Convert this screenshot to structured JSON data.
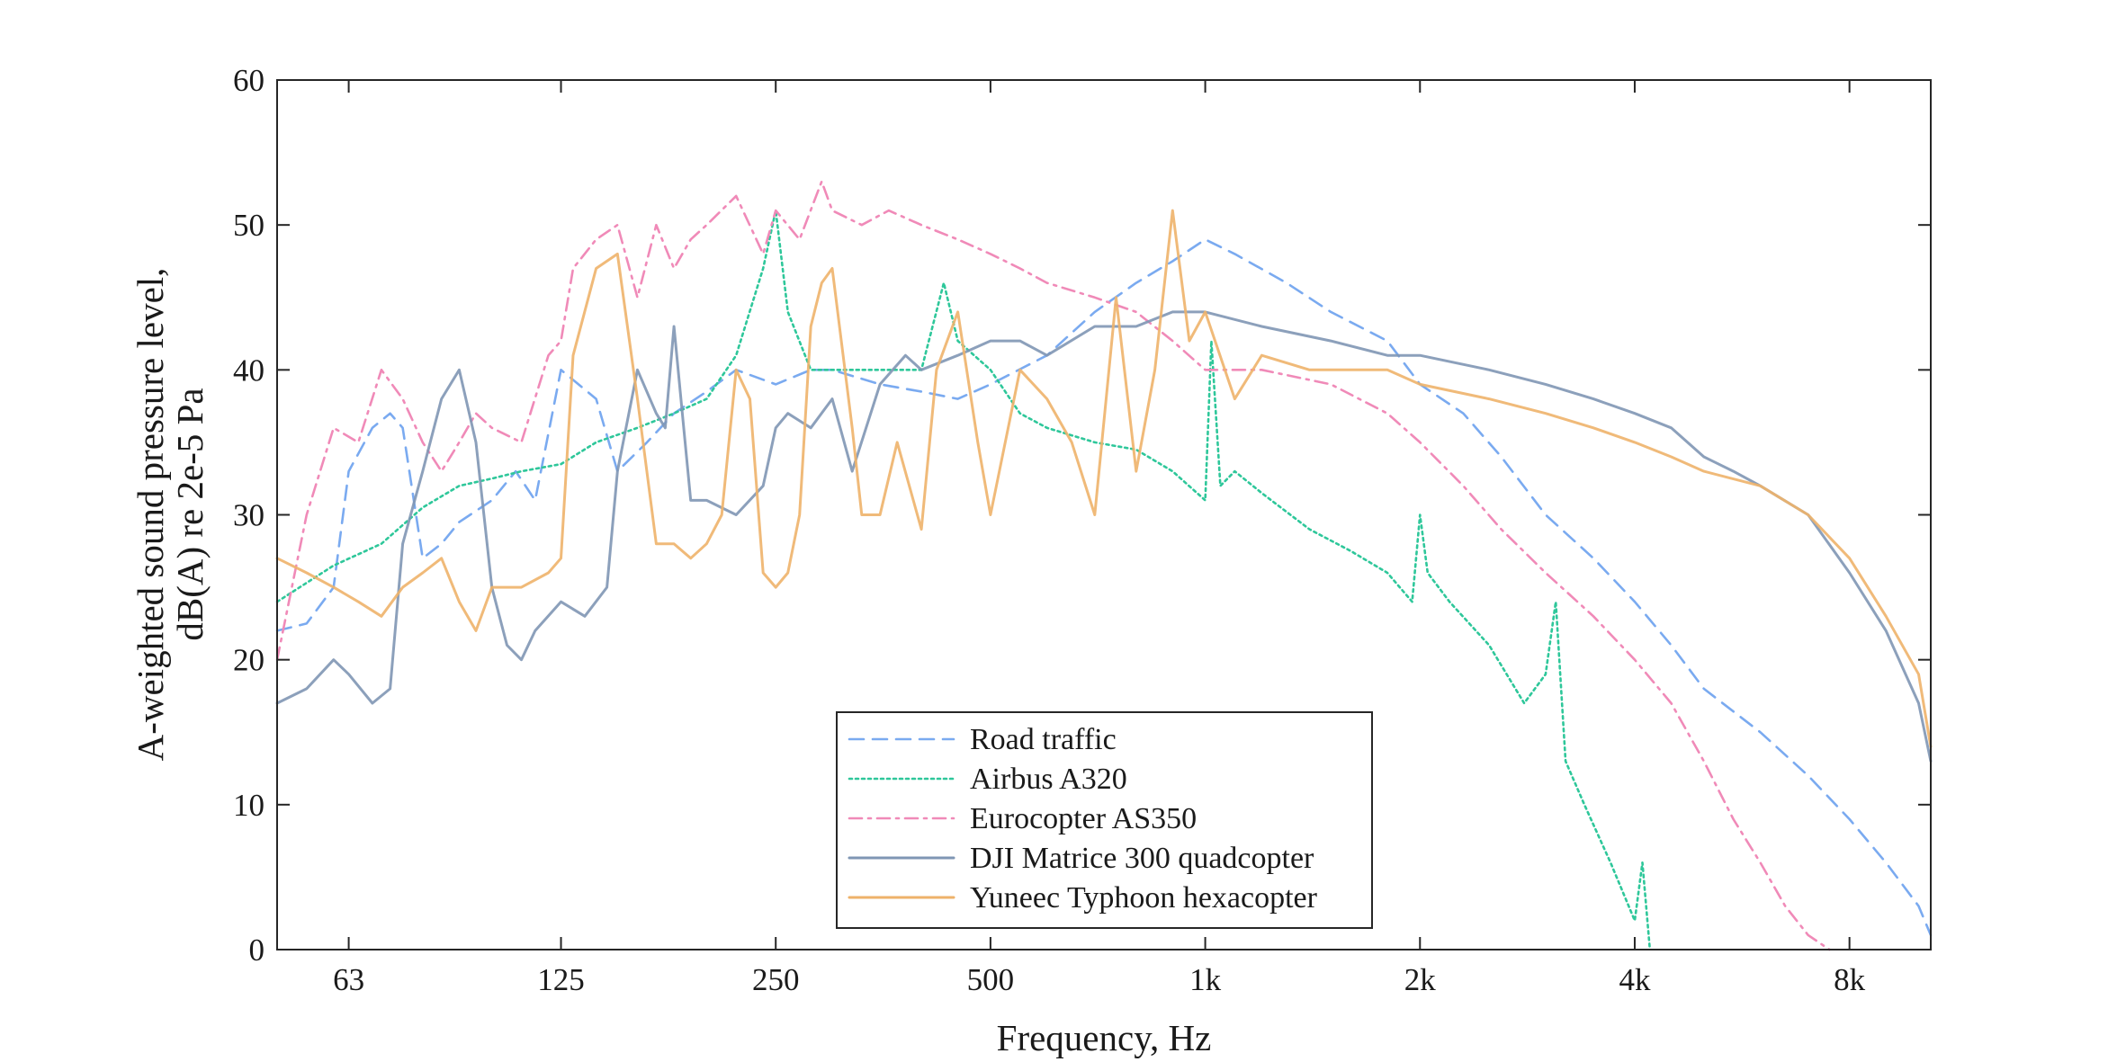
{
  "chart_data": {
    "type": "line",
    "title": "",
    "xlabel": "Frequency, Hz",
    "ylabel_lines": [
      "A-weighted sound pressure level,",
      "dB(A) re 2e-5 Pa"
    ],
    "x_scale": "log2",
    "xlim": [
      50,
      10400
    ],
    "ylim": [
      0,
      60
    ],
    "x_ticks": [
      63,
      125,
      250,
      500,
      1000,
      2000,
      4000,
      8000
    ],
    "x_tick_labels": [
      "63",
      "125",
      "250",
      "500",
      "1k",
      "2k",
      "4k",
      "8k"
    ],
    "y_ticks": [
      0,
      10,
      20,
      30,
      40,
      50,
      60
    ],
    "y_tick_labels": [
      "0",
      "10",
      "20",
      "30",
      "40",
      "50",
      "60"
    ],
    "grid": false,
    "legend_position": "bottom-center",
    "series": [
      {
        "name": "Road traffic",
        "color": "#7aaaf0",
        "dash": "dashed",
        "x": [
          50,
          55,
          60,
          63,
          68,
          72,
          75,
          80,
          85,
          90,
          100,
          108,
          115,
          125,
          140,
          150,
          165,
          180,
          200,
          220,
          250,
          280,
          300,
          350,
          400,
          450,
          500,
          600,
          700,
          800,
          900,
          1000,
          1100,
          1300,
          1500,
          1800,
          2000,
          2300,
          2600,
          3000,
          3500,
          4000,
          4500,
          5000,
          6000,
          7000,
          8000,
          9000,
          10000,
          10400
        ],
        "y": [
          22,
          22.5,
          25,
          33,
          36,
          37,
          36,
          27,
          28,
          29.5,
          31,
          33,
          31,
          40,
          38,
          33,
          35,
          37,
          38.5,
          40,
          39,
          40,
          40,
          39,
          38.5,
          38,
          39,
          41,
          44,
          46,
          47.5,
          49,
          48,
          46,
          44,
          42,
          39,
          37,
          34,
          30,
          27,
          24,
          21,
          18,
          15,
          12,
          9,
          6,
          3,
          1
        ]
      },
      {
        "name": "Airbus A320",
        "color": "#2ec79a",
        "dash": "dotted",
        "x": [
          50,
          60,
          70,
          80,
          90,
          100,
          110,
          125,
          140,
          160,
          180,
          200,
          220,
          240,
          250,
          260,
          280,
          300,
          350,
          400,
          430,
          450,
          500,
          550,
          600,
          700,
          800,
          900,
          1000,
          1020,
          1050,
          1100,
          1200,
          1400,
          1600,
          1800,
          1950,
          2000,
          2050,
          2200,
          2500,
          2800,
          3000,
          3100,
          3200,
          3400,
          3700,
          4000,
          4100,
          4200
        ],
        "y": [
          24,
          26.5,
          28,
          30.5,
          32,
          32.5,
          33,
          33.5,
          35,
          36,
          37,
          38,
          41,
          47,
          51,
          44,
          40,
          40,
          40,
          40,
          46,
          42,
          40,
          37,
          36,
          35,
          34.5,
          33,
          31,
          42,
          32,
          33,
          31.5,
          29,
          27.5,
          26,
          24,
          30,
          26,
          24,
          21,
          17,
          19,
          24,
          13,
          10,
          6,
          2,
          6,
          0
        ]
      },
      {
        "name": "Eurocopter AS350",
        "color": "#f08ab8",
        "dash": "dashdot",
        "x": [
          50,
          55,
          60,
          65,
          70,
          75,
          80,
          85,
          90,
          95,
          100,
          110,
          120,
          125,
          130,
          140,
          150,
          160,
          170,
          180,
          190,
          200,
          220,
          240,
          250,
          270,
          290,
          300,
          330,
          360,
          400,
          450,
          500,
          550,
          600,
          700,
          800,
          900,
          1000,
          1200,
          1500,
          1800,
          2000,
          2300,
          2600,
          3000,
          3500,
          4000,
          4500,
          5000,
          5500,
          6000,
          6500,
          7000,
          7500
        ],
        "y": [
          20,
          30,
          36,
          35,
          40,
          38,
          35,
          33,
          35,
          37,
          36,
          35,
          41,
          42,
          47,
          49,
          50,
          45,
          50,
          47,
          49,
          50,
          52,
          48,
          51,
          49,
          53,
          51,
          50,
          51,
          50,
          49,
          48,
          47,
          46,
          45,
          44,
          42,
          40,
          40,
          39,
          37,
          35,
          32,
          29,
          26,
          23,
          20,
          17,
          13,
          9,
          6,
          3,
          1,
          0
        ]
      },
      {
        "name": "DJI Matrice 300 quadcopter",
        "color": "#7f96b4",
        "dash": "solid",
        "x": [
          50,
          55,
          60,
          63,
          68,
          72,
          75,
          80,
          85,
          90,
          95,
          100,
          105,
          110,
          115,
          125,
          135,
          145,
          150,
          160,
          170,
          175,
          180,
          190,
          200,
          220,
          240,
          250,
          260,
          280,
          300,
          320,
          350,
          380,
          400,
          450,
          500,
          550,
          600,
          700,
          800,
          900,
          1000,
          1200,
          1500,
          1800,
          2000,
          2500,
          3000,
          3500,
          4000,
          4500,
          5000,
          5500,
          6000,
          7000,
          8000,
          9000,
          10000,
          10400
        ],
        "y": [
          17,
          18,
          20,
          19,
          17,
          18,
          28,
          33,
          38,
          40,
          35,
          25,
          21,
          20,
          22,
          24,
          23,
          25,
          33,
          40,
          37,
          36,
          43,
          31,
          31,
          30,
          32,
          36,
          37,
          36,
          38,
          33,
          39,
          41,
          40,
          41,
          42,
          42,
          41,
          43,
          43,
          44,
          44,
          43,
          42,
          41,
          41,
          40,
          39,
          38,
          37,
          36,
          34,
          33,
          32,
          30,
          26,
          22,
          17,
          13
        ]
      },
      {
        "name": "Yuneec Typhoon hexacopter",
        "color": "#eeb26a",
        "dash": "solid",
        "x": [
          50,
          55,
          60,
          65,
          70,
          75,
          80,
          85,
          90,
          95,
          100,
          110,
          120,
          125,
          130,
          140,
          150,
          160,
          170,
          180,
          190,
          200,
          210,
          220,
          230,
          240,
          250,
          260,
          270,
          280,
          290,
          300,
          320,
          330,
          350,
          370,
          400,
          420,
          450,
          480,
          500,
          550,
          600,
          650,
          700,
          750,
          800,
          850,
          900,
          950,
          1000,
          1100,
          1200,
          1400,
          1600,
          1800,
          2000,
          2500,
          3000,
          3500,
          4000,
          4500,
          5000,
          6000,
          7000,
          8000,
          9000,
          10000,
          10400
        ],
        "y": [
          27,
          26,
          25,
          24,
          23,
          25,
          26,
          27,
          24,
          22,
          25,
          25,
          26,
          27,
          41,
          47,
          48,
          38,
          28,
          28,
          27,
          28,
          30,
          40,
          38,
          26,
          25,
          26,
          30,
          43,
          46,
          47,
          36,
          30,
          30,
          35,
          29,
          40,
          44,
          35,
          30,
          40,
          38,
          35,
          30,
          45,
          33,
          40,
          51,
          42,
          44,
          38,
          41,
          40,
          40,
          40,
          39,
          38,
          37,
          36,
          35,
          34,
          33,
          32,
          30,
          27,
          23,
          19,
          14
        ]
      }
    ]
  }
}
